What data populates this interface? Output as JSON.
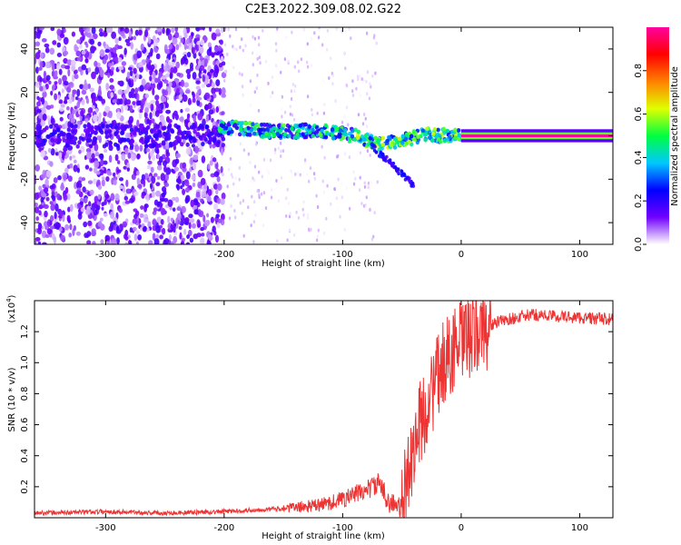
{
  "title": "C2E3.2022.309.08.02.G22",
  "chart_data": [
    {
      "type": "heatmap",
      "xlabel": "Height of straight line (km)",
      "ylabel": "Frequency (Hz)",
      "xlim": [
        -360,
        128
      ],
      "ylim": [
        -50,
        50
      ],
      "x_ticks": [
        -300,
        -200,
        -100,
        0,
        100
      ],
      "x_tick_labels": [
        "-300",
        "-200",
        "-100",
        "0",
        "100"
      ],
      "y_ticks": [
        -40,
        -20,
        0,
        20,
        40
      ],
      "y_tick_labels": [
        "-40",
        "-20",
        "0",
        "20",
        "40"
      ],
      "colorbar": {
        "label": "Normalized spectral amplitude",
        "range": [
          0,
          1
        ],
        "ticks": [
          0,
          0.2,
          0.4,
          0.6,
          0.8
        ],
        "tick_labels": [
          "0.0",
          "0.2",
          "0.4",
          "0.6",
          "0.8"
        ],
        "colors": [
          "#ffffff",
          "#7000ff",
          "#0000ff",
          "#00c8ff",
          "#00ff40",
          "#e0ff00",
          "#ff8000",
          "#ff0000",
          "#ff00a0"
        ]
      },
      "ridge": {
        "x": [
          -200,
          -180,
          -160,
          -140,
          -120,
          -100,
          -90,
          -80,
          -70,
          -60,
          -50,
          -40,
          -30,
          -20,
          -10,
          0
        ],
        "freq": [
          4,
          3,
          2,
          2,
          2.5,
          1,
          0,
          -2,
          -4,
          -3,
          -2,
          -1,
          1,
          0,
          0.5,
          1
        ]
      },
      "strong_line": {
        "x_range": [
          0,
          128
        ],
        "freq": 0,
        "amplitude": 1.0
      },
      "grid": false
    },
    {
      "type": "line",
      "xlabel": "Height of straight line (km)",
      "ylabel": "SNR (10 * v/v)",
      "y_multiplier_label": "(x10",
      "y_multiplier_exp": "4",
      "xlim": [
        -360,
        128
      ],
      "ylim": [
        0,
        1.4
      ],
      "x_ticks": [
        -300,
        -200,
        -100,
        0,
        100
      ],
      "x_tick_labels": [
        "-300",
        "-200",
        "-100",
        "0",
        "100"
      ],
      "y_ticks": [
        0.2,
        0.4,
        0.6,
        0.8,
        1.0,
        1.2
      ],
      "y_tick_labels": [
        "0.2",
        "0.4",
        "0.6",
        "0.8",
        "1.0",
        "1.2"
      ],
      "color": "#ee3333",
      "x": [
        -360,
        -300,
        -250,
        -200,
        -150,
        -120,
        -100,
        -80,
        -70,
        -60,
        -50,
        -45,
        -40,
        -35,
        -30,
        -25,
        -20,
        -15,
        -10,
        -5,
        0,
        5,
        10,
        20,
        30,
        40,
        60,
        80,
        100,
        128
      ],
      "y": [
        0.03,
        0.04,
        0.03,
        0.04,
        0.06,
        0.08,
        0.12,
        0.18,
        0.22,
        0.1,
        0.05,
        0.3,
        0.45,
        0.6,
        0.7,
        0.8,
        0.9,
        1.0,
        1.05,
        1.1,
        1.12,
        1.15,
        1.18,
        1.22,
        1.26,
        1.28,
        1.31,
        1.3,
        1.29,
        1.28
      ],
      "grid": false
    }
  ]
}
